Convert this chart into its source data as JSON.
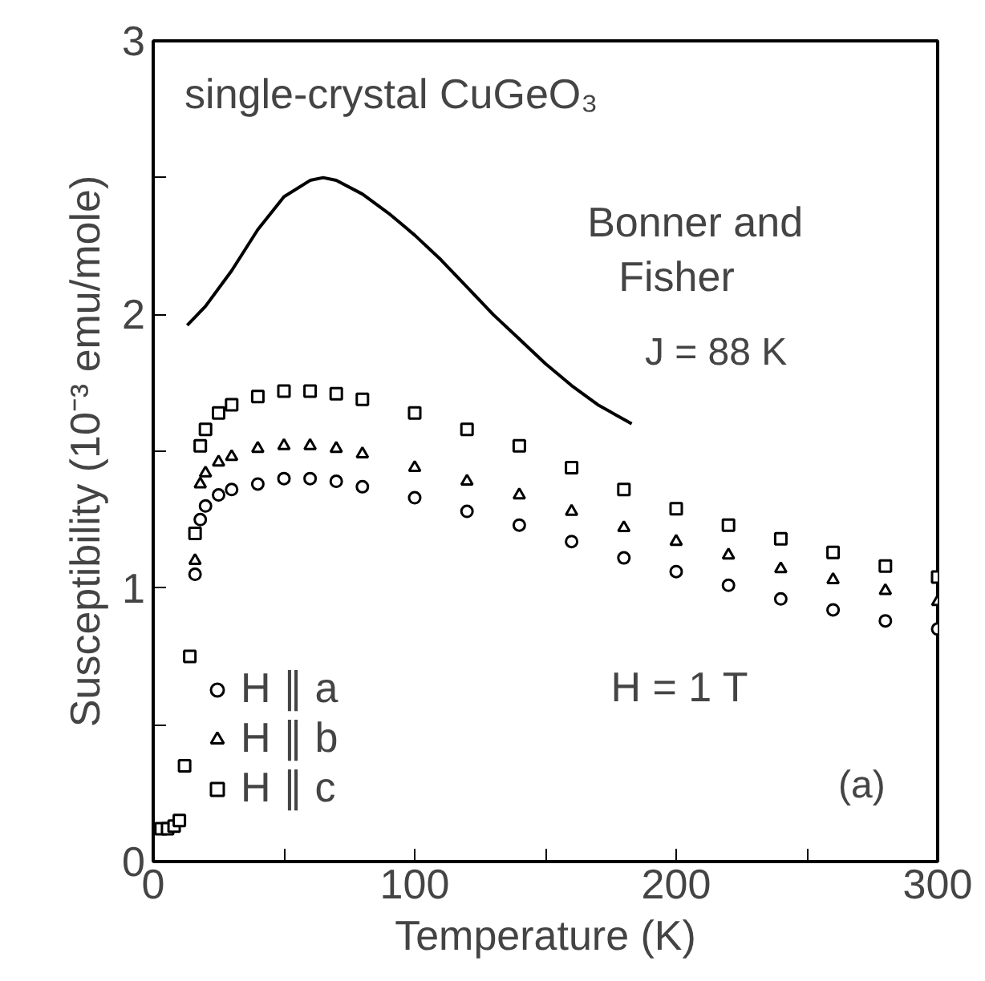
{
  "chart_data": {
    "type": "scatter",
    "xlabel": "Temperature (K)",
    "ylabel": "Susceptibility (10⁻³ emu/mole)",
    "x": [
      16,
      18,
      20,
      25,
      30,
      40,
      50,
      60,
      70,
      80,
      100,
      120,
      140,
      160,
      180,
      200,
      220,
      240,
      260,
      280,
      300
    ],
    "series": [
      {
        "name": "H ∥ a",
        "color": "#000000",
        "marker": "circle",
        "values": [
          1.05,
          1.25,
          1.3,
          1.34,
          1.36,
          1.38,
          1.4,
          1.4,
          1.39,
          1.37,
          1.33,
          1.28,
          1.23,
          1.17,
          1.11,
          1.06,
          1.01,
          0.96,
          0.92,
          0.88,
          0.85
        ]
      },
      {
        "name": "H ∥ b",
        "color": "#000000",
        "marker": "triangle",
        "values": [
          1.1,
          1.38,
          1.42,
          1.46,
          1.48,
          1.51,
          1.52,
          1.52,
          1.51,
          1.49,
          1.44,
          1.39,
          1.34,
          1.28,
          1.22,
          1.17,
          1.12,
          1.07,
          1.03,
          0.99,
          0.95
        ]
      },
      {
        "name": "H ∥ c",
        "color": "#000000",
        "marker": "square",
        "x": [
          3,
          5.5,
          8,
          10,
          12,
          14,
          16,
          18,
          20,
          25,
          30,
          40,
          50,
          60,
          70,
          80,
          100,
          120,
          140,
          160,
          180,
          200,
          220,
          240,
          260,
          280,
          300
        ],
        "values": [
          0.12,
          0.12,
          0.13,
          0.15,
          0.35,
          0.75,
          1.2,
          1.52,
          1.58,
          1.64,
          1.67,
          1.7,
          1.72,
          1.72,
          1.71,
          1.69,
          1.64,
          1.58,
          1.52,
          1.44,
          1.36,
          1.29,
          1.23,
          1.18,
          1.13,
          1.08,
          1.04
        ]
      },
      {
        "type": "line",
        "color": "#000000",
        "x": [
          13,
          20,
          30,
          40,
          50,
          60,
          65,
          70,
          80,
          90,
          100,
          110,
          120,
          130,
          140,
          150,
          160,
          170,
          183
        ],
        "values": [
          1.96,
          2.03,
          2.16,
          2.31,
          2.43,
          2.49,
          2.5,
          2.49,
          2.44,
          2.37,
          2.29,
          2.2,
          2.1,
          2.0,
          1.91,
          1.82,
          1.74,
          1.67,
          1.6
        ]
      }
    ],
    "xlim": [
      0,
      300
    ],
    "ylim": [
      0,
      3
    ],
    "xticks": [
      0,
      {
        "value": 50,
        "label": null
      },
      100,
      {
        "value": 150,
        "label": null
      },
      200,
      {
        "value": 250,
        "label": null
      },
      300
    ],
    "yticks": [
      0,
      {
        "value": 0.5,
        "label": null
      },
      1,
      {
        "value": 1.5,
        "label": null
      },
      2,
      {
        "value": 2.5,
        "label": null
      },
      3
    ],
    "grid": false,
    "legend": "bottom left",
    "annotations": [
      "single-crystal CuGeO₃",
      "Bonner and Fisher",
      "J = 88 K",
      "H = 1 T",
      "(a)"
    ]
  }
}
